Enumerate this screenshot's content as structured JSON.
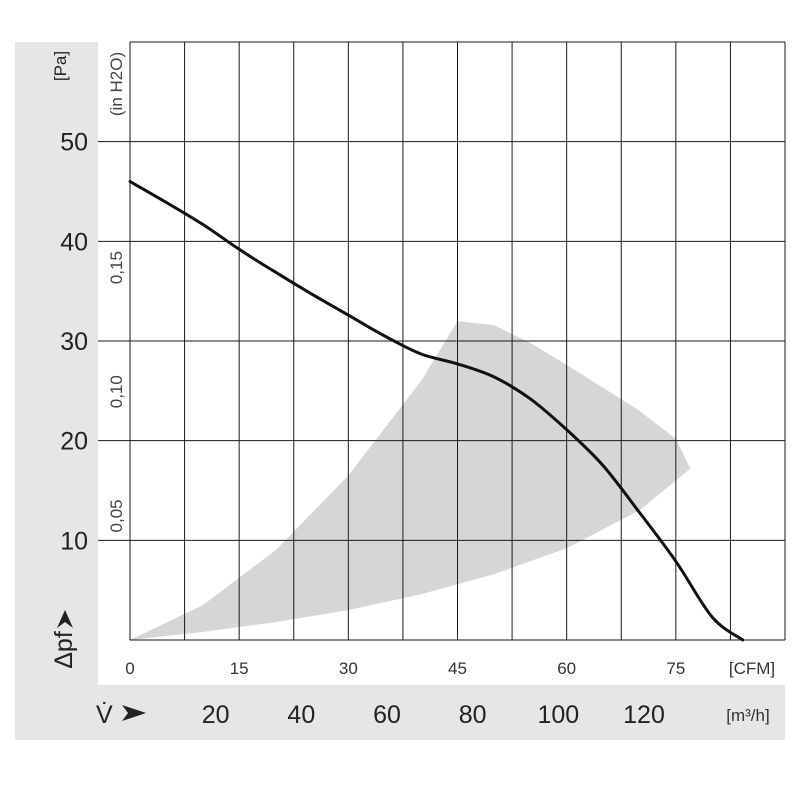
{
  "chart_data": {
    "type": "line",
    "y_axis": {
      "label": "Δpf",
      "unit": "[Pa]",
      "ticks": [
        10,
        20,
        30,
        40,
        50
      ],
      "range": [
        0,
        60
      ]
    },
    "y_axis_secondary": {
      "unit": "(in H2O)",
      "ticks": [
        "0,05",
        "0,10",
        "0,15"
      ],
      "tick_values": [
        0.05,
        0.1,
        0.15
      ]
    },
    "x_axis": {
      "unit": "[CFM]",
      "ticks": [
        0,
        15,
        30,
        45,
        60,
        75
      ],
      "range": [
        0,
        90
      ]
    },
    "x_axis_secondary": {
      "label": "V̇",
      "unit": "[m³/h]",
      "ticks": [
        20,
        40,
        60,
        80,
        100,
        120
      ]
    },
    "grid": true,
    "series": [
      {
        "color": "#111111",
        "x": [
          0,
          5,
          10,
          15,
          20,
          25,
          30,
          35,
          40,
          45,
          50,
          55,
          60,
          65,
          70,
          75,
          80,
          84.2
        ],
        "y": [
          46,
          43.9,
          41.7,
          39.2,
          36.9,
          34.7,
          32.6,
          30.5,
          28.7,
          27.7,
          26.4,
          24.2,
          21.1,
          17.5,
          12.8,
          7.9,
          2.3,
          0
        ]
      }
    ],
    "shaded_region": {
      "color": "#d6d6d6",
      "upper": {
        "x": [
          0,
          10,
          20,
          30,
          40,
          45,
          50,
          55,
          60,
          65,
          70,
          75,
          77
        ],
        "y": [
          0,
          3.5,
          9,
          16.5,
          26,
          32,
          31.6,
          29.8,
          27.6,
          25.3,
          23.0,
          20.2,
          17.2
        ]
      },
      "lower": {
        "x": [
          0,
          10,
          20,
          30,
          40,
          50,
          60,
          70,
          77
        ],
        "y": [
          0,
          0.8,
          1.8,
          3.0,
          4.6,
          6.6,
          9.2,
          13.0,
          17.2
        ]
      }
    }
  }
}
